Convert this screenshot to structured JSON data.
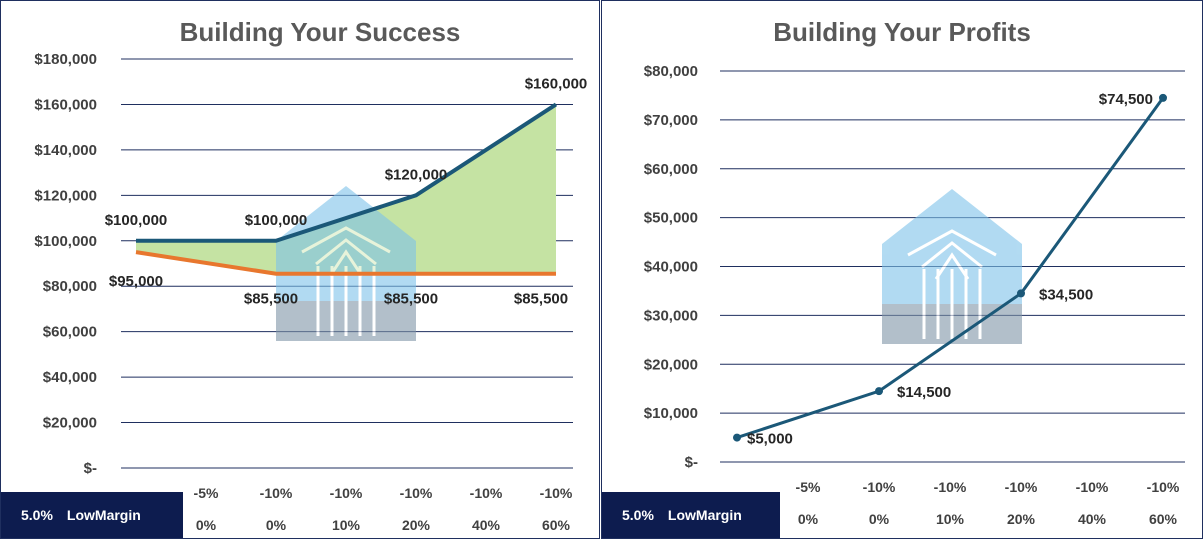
{
  "badge": {
    "rate": "5.0%",
    "label": "LowMargin"
  },
  "colors": {
    "navy": "#1b5878",
    "orange": "#e8772e",
    "fill": "#c5e3a3",
    "grid": "#1f2f5f",
    "badge_bg": "#0d1c4f"
  },
  "icon": "house-arrows-watermark-icon",
  "chart_data": [
    {
      "type": "area",
      "title": "Building Your Success",
      "ylim": [
        0,
        180000
      ],
      "y_ticks": [
        "$180,000",
        "$160,000",
        "$140,000",
        "$120,000",
        "$100,000",
        "$80,000",
        "$60,000",
        "$40,000",
        "$20,000",
        "$-"
      ],
      "categories_row1": [
        "",
        "-5%",
        "-10%",
        "-10%",
        "-10%",
        "-10%",
        "-10%"
      ],
      "categories_row2": [
        "",
        "0%",
        "0%",
        "10%",
        "20%",
        "40%",
        "60%"
      ],
      "series": [
        {
          "values": [
            100000,
            null,
            100000,
            null,
            120000,
            null,
            160000
          ],
          "labels": [
            "$100,000",
            "",
            "$100,000",
            "",
            "$120,000",
            "",
            "$160,000"
          ]
        },
        {
          "values": [
            95000,
            null,
            85500,
            null,
            85500,
            null,
            85500
          ],
          "labels": [
            "$95,000",
            "",
            "$85,500",
            "",
            "$85,500",
            "",
            "$85,500"
          ]
        }
      ]
    },
    {
      "type": "line",
      "title": "Building Your Profits",
      "ylim": [
        0,
        80000
      ],
      "y_ticks": [
        "$80,000",
        "$70,000",
        "$60,000",
        "$50,000",
        "$40,000",
        "$30,000",
        "$20,000",
        "$10,000",
        "$-"
      ],
      "categories_row1": [
        "",
        "-5%",
        "-10%",
        "-10%",
        "-10%",
        "-10%",
        "-10%"
      ],
      "categories_row2": [
        "",
        "0%",
        "0%",
        "10%",
        "20%",
        "40%",
        "60%"
      ],
      "series": [
        {
          "values": [
            5000,
            null,
            14500,
            null,
            34500,
            null,
            74500
          ],
          "labels": [
            "$5,000",
            "",
            "$14,500",
            "",
            "$34,500",
            "",
            "$74,500"
          ]
        }
      ]
    }
  ]
}
